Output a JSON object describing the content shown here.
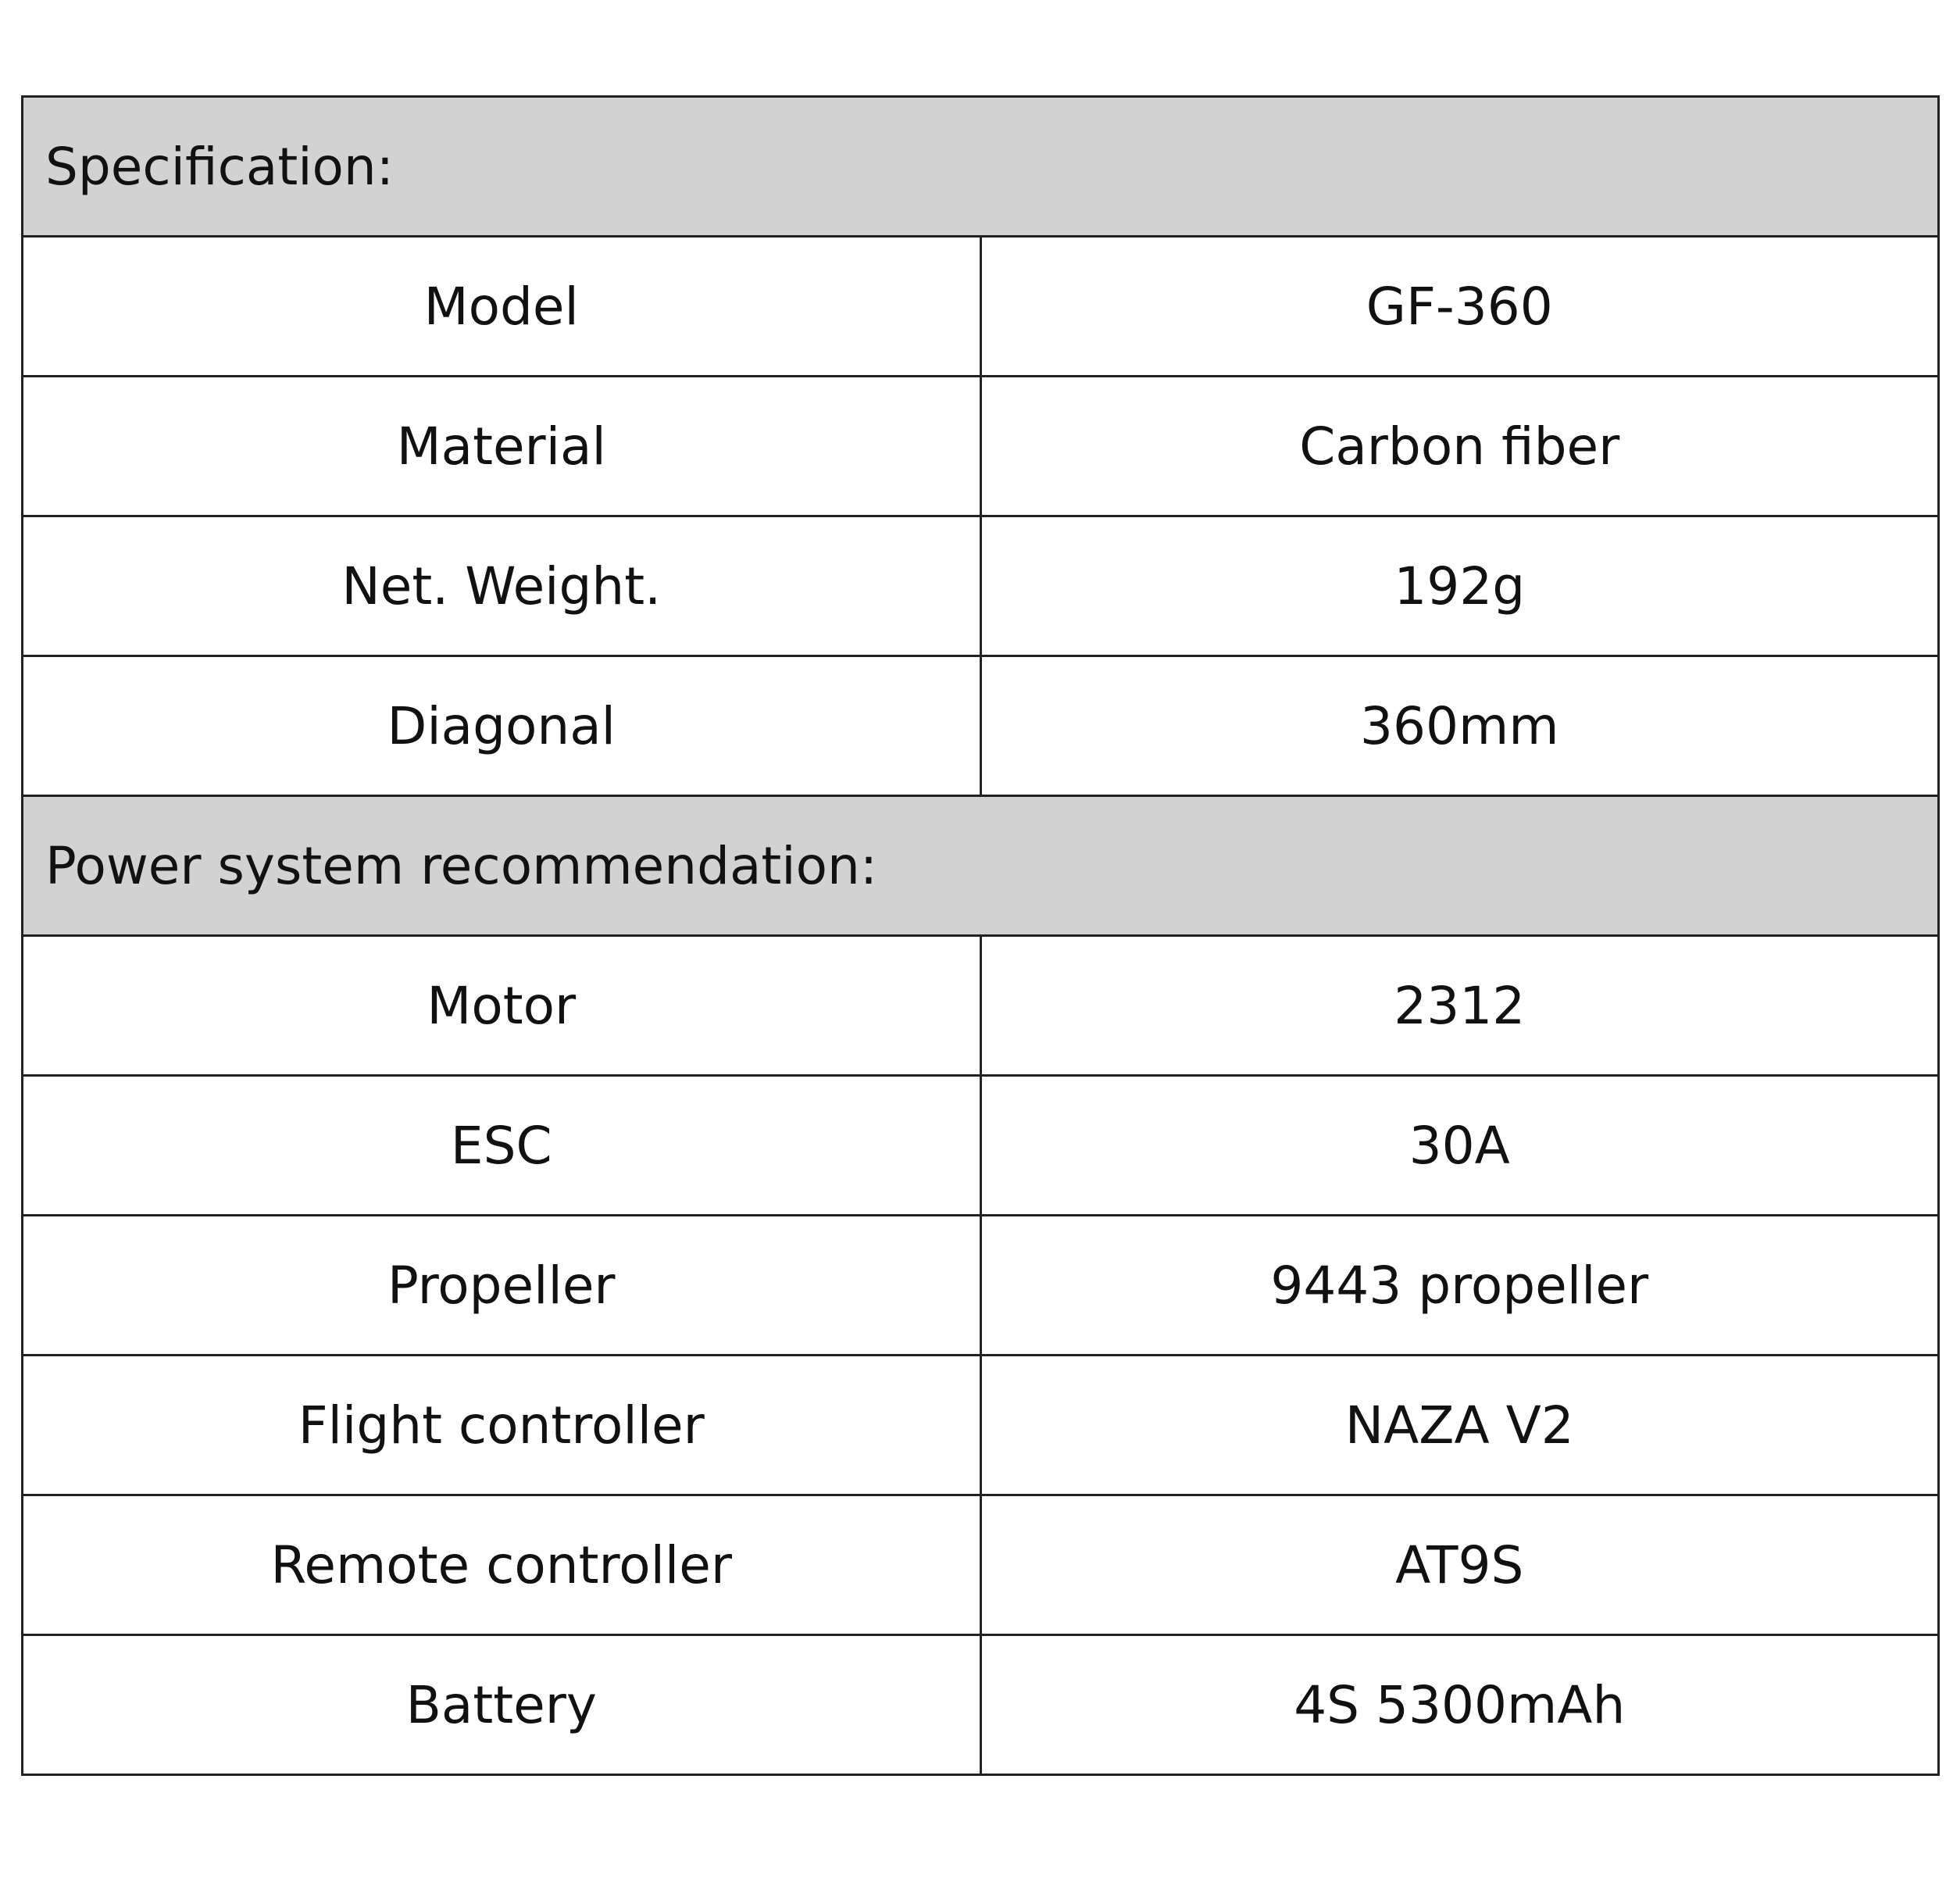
{
  "sections": [
    {
      "title": "Specification:",
      "rows": [
        {
          "label": "Model",
          "value": "GF-360"
        },
        {
          "label": "Material",
          "value": "Carbon fiber"
        },
        {
          "label": "Net. Weight.",
          "value": "192g"
        },
        {
          "label": "Diagonal",
          "value": "360mm"
        }
      ]
    },
    {
      "title": "Power system recommendation:",
      "rows": [
        {
          "label": "Motor",
          "value": "2312"
        },
        {
          "label": "ESC",
          "value": "30A"
        },
        {
          "label": "Propeller",
          "value": "9443 propeller"
        },
        {
          "label": "Flight controller",
          "value": "NAZA V2"
        },
        {
          "label": "Remote controller",
          "value": "AT9S"
        },
        {
          "label": "Battery",
          "value": "4S 5300mAh"
        }
      ]
    }
  ],
  "colors": {
    "section_header_bg": "#d2d2d2",
    "border": "#222222"
  }
}
